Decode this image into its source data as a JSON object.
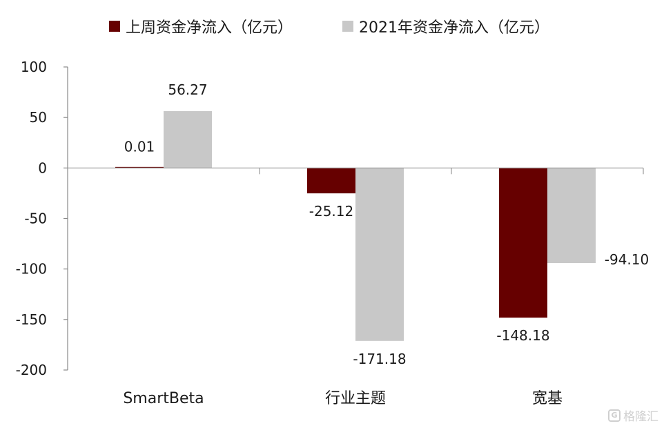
{
  "chart_data": {
    "type": "bar",
    "categories": [
      "SmartBeta",
      "行业主题",
      "宽基"
    ],
    "series": [
      {
        "name": "上周资金净流入（亿元）",
        "color": "#660000",
        "values": [
          0.01,
          -25.12,
          -148.18
        ],
        "labels": [
          "0.01",
          "-25.12",
          "-148.18"
        ]
      },
      {
        "name": "2021年资金净流入（亿元）",
        "color": "#c8c8c8",
        "values": [
          56.27,
          -171.18,
          -94.1
        ],
        "labels": [
          "56.27",
          "-171.18",
          "-94.10"
        ]
      }
    ],
    "yticks": [
      "100",
      "50",
      "0",
      "-50",
      "-100",
      "-150",
      "-200"
    ],
    "ylim": [
      -200,
      100
    ],
    "grid": false,
    "legend_position": "top"
  },
  "watermark": {
    "text": "格隆汇"
  }
}
